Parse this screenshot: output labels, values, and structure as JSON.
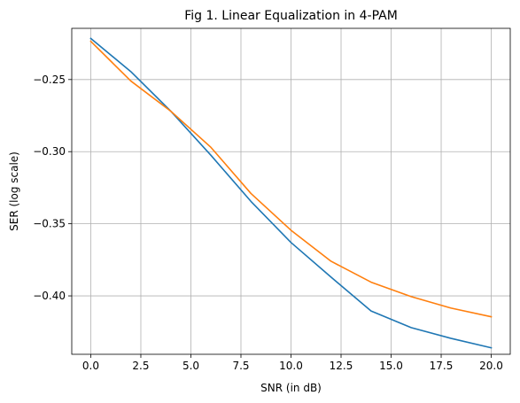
{
  "chart_data": {
    "type": "line",
    "title": "Fig 1. Linear Equalization in 4-PAM",
    "xlabel": "SNR (in dB)",
    "ylabel": "SER (log scale)",
    "xlim": [
      -0.95,
      20.95
    ],
    "ylim": [
      -0.4405,
      -0.2145
    ],
    "xticks": [
      0.0,
      2.5,
      5.0,
      7.5,
      10.0,
      12.5,
      15.0,
      17.5,
      20.0
    ],
    "xtick_labels": [
      "0.0",
      "2.5",
      "5.0",
      "7.5",
      "10.0",
      "12.5",
      "15.0",
      "17.5",
      "20.0"
    ],
    "yticks": [
      -0.25,
      -0.3,
      -0.35,
      -0.4
    ],
    "ytick_labels": [
      "−0.25",
      "−0.30",
      "−0.35",
      "−0.40"
    ],
    "grid": true,
    "x": [
      0,
      2,
      4,
      6,
      8,
      10,
      12,
      14,
      16,
      18,
      20
    ],
    "series": [
      {
        "color": "#1f77b4",
        "values": [
          -0.2215,
          -0.2445,
          -0.272,
          -0.3025,
          -0.3345,
          -0.363,
          -0.387,
          -0.4105,
          -0.422,
          -0.4295,
          -0.436
        ]
      },
      {
        "color": "#ff7f0e",
        "values": [
          -0.2235,
          -0.251,
          -0.272,
          -0.297,
          -0.329,
          -0.3545,
          -0.376,
          -0.3905,
          -0.4005,
          -0.4085,
          -0.4145
        ]
      }
    ]
  }
}
